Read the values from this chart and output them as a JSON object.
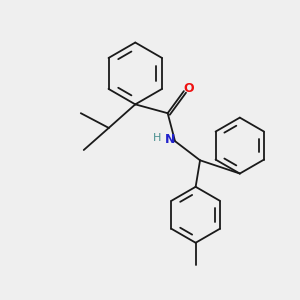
{
  "bg_color": "#efefef",
  "bond_color": "#1a1a1a",
  "bond_width": 1.3,
  "atom_colors": {
    "O": "#ee1111",
    "N": "#2222cc",
    "H": "#4a9090",
    "C": "#1a1a1a"
  },
  "figsize": [
    3.0,
    3.0
  ],
  "dpi": 100
}
